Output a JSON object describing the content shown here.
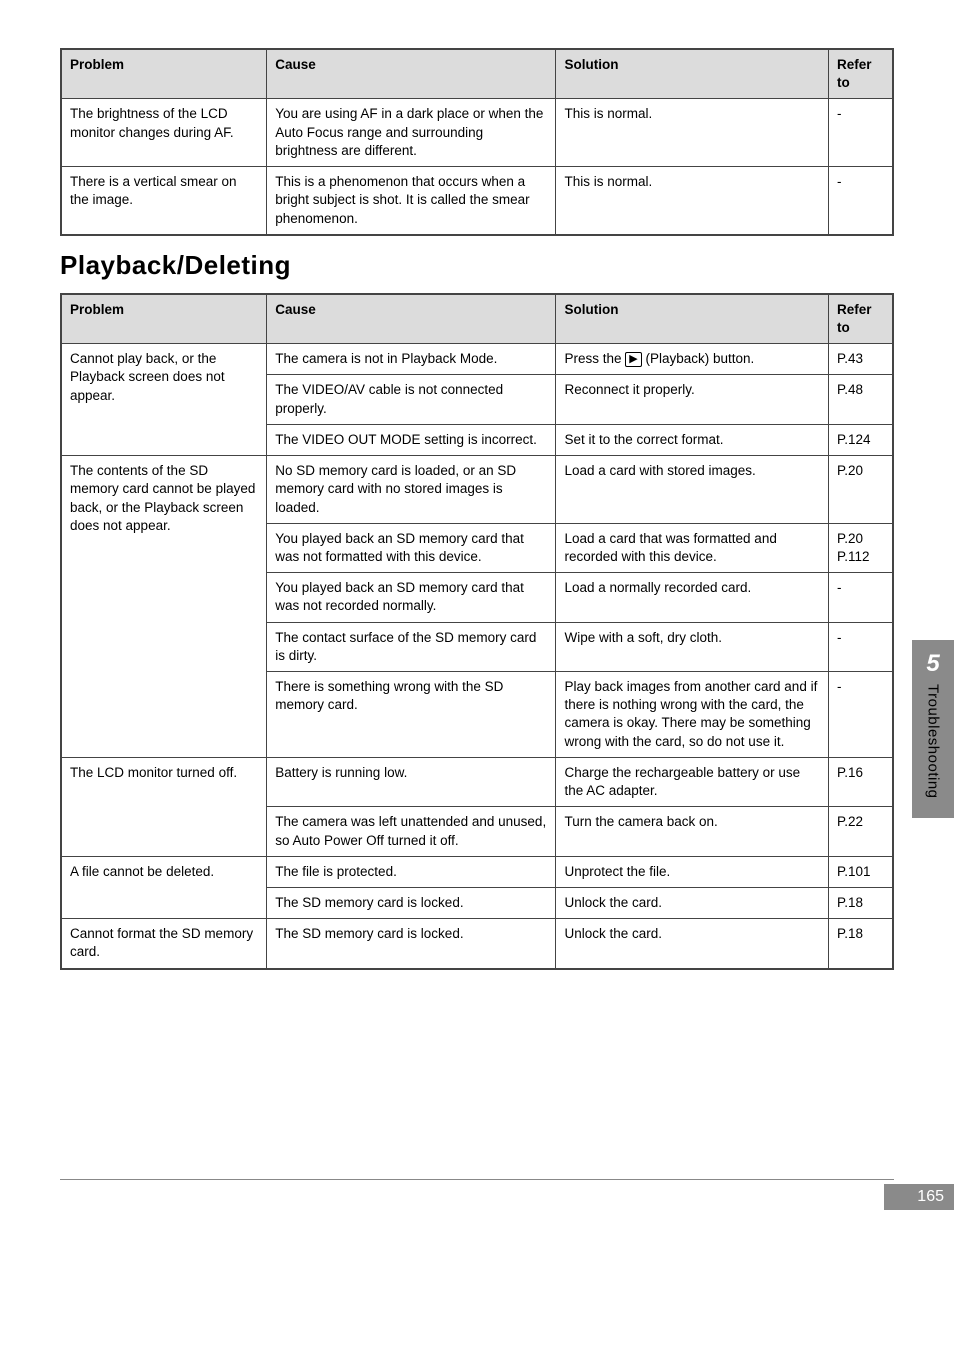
{
  "table1": {
    "headers": {
      "problem": "Problem",
      "cause": "Cause",
      "solution": "Solution",
      "refer": "Refer to"
    },
    "rows": [
      {
        "problem": "The brightness of the LCD monitor changes during AF.",
        "cause": "You are using AF in a dark place or when the Auto Focus range and surrounding brightness are different.",
        "solution": "This is normal.",
        "refer": "-"
      },
      {
        "problem": "There is a vertical smear on the image.",
        "cause": "This is a phenomenon that occurs when a bright subject is shot. It is called the smear phenomenon.",
        "solution": "This is normal.",
        "refer": "-"
      }
    ]
  },
  "section_heading": "Playback/Deleting",
  "table2": {
    "headers": {
      "problem": "Problem",
      "cause": "Cause",
      "solution": "Solution",
      "refer": "Refer to"
    },
    "groups": [
      {
        "problem": "Cannot play back, or the Playback screen does not appear.",
        "rows": [
          {
            "cause": "The camera is not in Playback Mode.",
            "solution_pre": "Press the ",
            "solution_icon": "▶",
            "solution_post": " (Playback) button.",
            "refer": "P.43"
          },
          {
            "cause": "The VIDEO/AV cable is not connected properly.",
            "solution": "Reconnect it properly.",
            "refer": "P.48"
          },
          {
            "cause": "The VIDEO OUT MODE setting is incorrect.",
            "solution": "Set it to the correct format.",
            "refer": "P.124"
          }
        ]
      },
      {
        "problem": "The contents of the SD memory card cannot be played back, or the Playback screen does not appear.",
        "rows": [
          {
            "cause": "No SD memory card is loaded, or an SD memory card with no stored images is loaded.",
            "solution": "Load a card with stored images.",
            "refer": "P.20"
          },
          {
            "cause": "You played back an SD memory card that was not formatted with this device.",
            "solution": "Load a card that was formatted and recorded with this device.",
            "refer": "P.20\nP.112"
          },
          {
            "cause": "You played back an SD memory card that was not recorded normally.",
            "solution": "Load a normally recorded card.",
            "refer": "-"
          },
          {
            "cause": "The contact surface of the SD memory card is dirty.",
            "solution": "Wipe with a soft, dry cloth.",
            "refer": "-"
          },
          {
            "cause": "There is something wrong with the SD memory card.",
            "solution": "Play back images from another card and if there is nothing wrong with the card, the camera is okay. There may be something wrong with the card, so do not use it.",
            "refer": "-"
          }
        ]
      },
      {
        "problem": "The LCD monitor turned off.",
        "rows": [
          {
            "cause": "Battery is running low.",
            "solution": "Charge the rechargeable battery or use the AC adapter.",
            "refer": "P.16"
          },
          {
            "cause": "The camera was left unattended and unused, so Auto Power Off turned it off.",
            "solution": "Turn the camera back on.",
            "refer": "P.22"
          }
        ]
      },
      {
        "problem": "A file cannot be deleted.",
        "rows": [
          {
            "cause": "The file is protected.",
            "solution": "Unprotect the file.",
            "refer": "P.101"
          },
          {
            "cause": "The SD memory card is locked.",
            "solution": "Unlock the card.",
            "refer": "P.18"
          }
        ]
      },
      {
        "problem": "Cannot format the SD memory card.",
        "rows": [
          {
            "cause": "The SD memory card is locked.",
            "solution": "Unlock the card.",
            "refer": "P.18"
          }
        ]
      }
    ]
  },
  "side": {
    "chapter": "5",
    "title": "Troubleshooting"
  },
  "page_number": "165"
}
